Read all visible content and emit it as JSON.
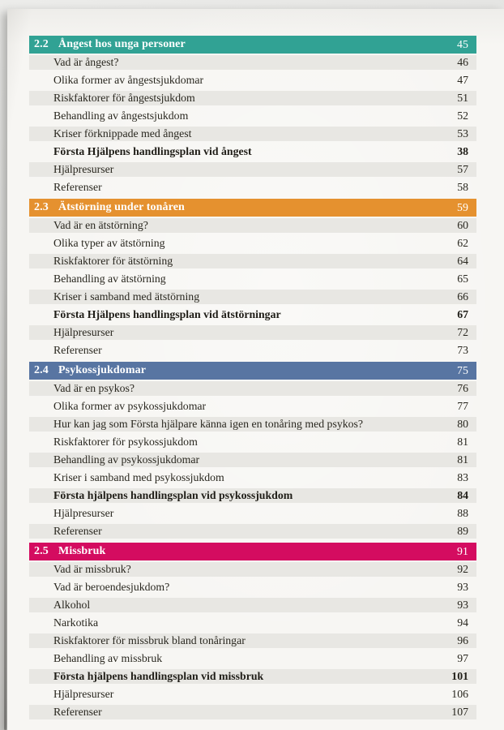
{
  "toc": {
    "sections": [
      {
        "number": "2.2",
        "title": "Ångest hos unga personer",
        "page": "45",
        "color": "#31a294",
        "items": [
          {
            "label": "Vad är ångest?",
            "page": "46",
            "bold": false
          },
          {
            "label": "Olika former av ångestsjukdomar",
            "page": "47",
            "bold": false
          },
          {
            "label": "Riskfaktorer för ångestsjukdom",
            "page": "51",
            "bold": false
          },
          {
            "label": "Behandling av ångestsjukdom",
            "page": "52",
            "bold": false
          },
          {
            "label": "Kriser förknippade med ångest",
            "page": "53",
            "bold": false
          },
          {
            "label": "Första Hjälpens handlingsplan vid ångest",
            "page": "38",
            "bold": true
          },
          {
            "label": "Hjälpresurser",
            "page": "57",
            "bold": false
          },
          {
            "label": "Referenser",
            "page": "58",
            "bold": false
          }
        ]
      },
      {
        "number": "2.3",
        "title": "Ätstörning under tonåren",
        "page": "59",
        "color": "#e5912f",
        "items": [
          {
            "label": "Vad är en ätstörning?",
            "page": "60",
            "bold": false
          },
          {
            "label": "Olika typer av ätstörning",
            "page": "62",
            "bold": false
          },
          {
            "label": "Riskfaktorer för ätstörning",
            "page": "64",
            "bold": false
          },
          {
            "label": "Behandling av ätstörning",
            "page": "65",
            "bold": false
          },
          {
            "label": "Kriser i samband med ätstörning",
            "page": "66",
            "bold": false
          },
          {
            "label": "Första Hjälpens handlingsplan vid ätstörningar",
            "page": "67",
            "bold": true
          },
          {
            "label": "Hjälpresurser",
            "page": "72",
            "bold": false
          },
          {
            "label": "Referenser",
            "page": "73",
            "bold": false
          }
        ]
      },
      {
        "number": "2.4",
        "title": "Psykossjukdomar",
        "page": "75",
        "color": "#5875a2",
        "items": [
          {
            "label": "Vad är en psykos?",
            "page": "76",
            "bold": false
          },
          {
            "label": "Olika former av psykossjukdomar",
            "page": "77",
            "bold": false
          },
          {
            "label": "Hur kan jag som Första hjälpare känna igen en tonåring med psykos?",
            "page": "80",
            "bold": false
          },
          {
            "label": "Riskfaktorer för psykossjukdom",
            "page": "81",
            "bold": false
          },
          {
            "label": "Behandling av psykossjukdomar",
            "page": "81",
            "bold": false
          },
          {
            "label": "Kriser i samband med psykossjukdom",
            "page": "83",
            "bold": false
          },
          {
            "label": "Första hjälpens handlingsplan vid psykossjukdom",
            "page": "84",
            "bold": true
          },
          {
            "label": "Hjälpresurser",
            "page": "88",
            "bold": false
          },
          {
            "label": "Referenser",
            "page": "89",
            "bold": false
          }
        ]
      },
      {
        "number": "2.5",
        "title": "Missbruk",
        "page": "91",
        "color": "#d40c60",
        "items": [
          {
            "label": "Vad är missbruk?",
            "page": "92",
            "bold": false
          },
          {
            "label": "Vad är beroendesjukdom?",
            "page": "93",
            "bold": false
          },
          {
            "label": "Alkohol",
            "page": "93",
            "bold": false
          },
          {
            "label": "Narkotika",
            "page": "94",
            "bold": false
          },
          {
            "label": "Riskfaktorer för missbruk bland tonåringar",
            "page": "96",
            "bold": false
          },
          {
            "label": "Behandling av missbruk",
            "page": "97",
            "bold": false
          },
          {
            "label": "Första hjälpens handlingsplan vid missbruk",
            "page": "101",
            "bold": true
          },
          {
            "label": "Hjälpresurser",
            "page": "106",
            "bold": false
          },
          {
            "label": "Referenser",
            "page": "107",
            "bold": false
          }
        ]
      }
    ],
    "colors": {
      "page_background": "#f7f6f3",
      "row_shade": "#e8e7e3",
      "text": "#29271f",
      "header_text": "#ffffff",
      "section_teal": "#31a294",
      "section_orange": "#e5912f",
      "section_blue": "#5875a2",
      "section_magenta": "#d40c60"
    }
  }
}
